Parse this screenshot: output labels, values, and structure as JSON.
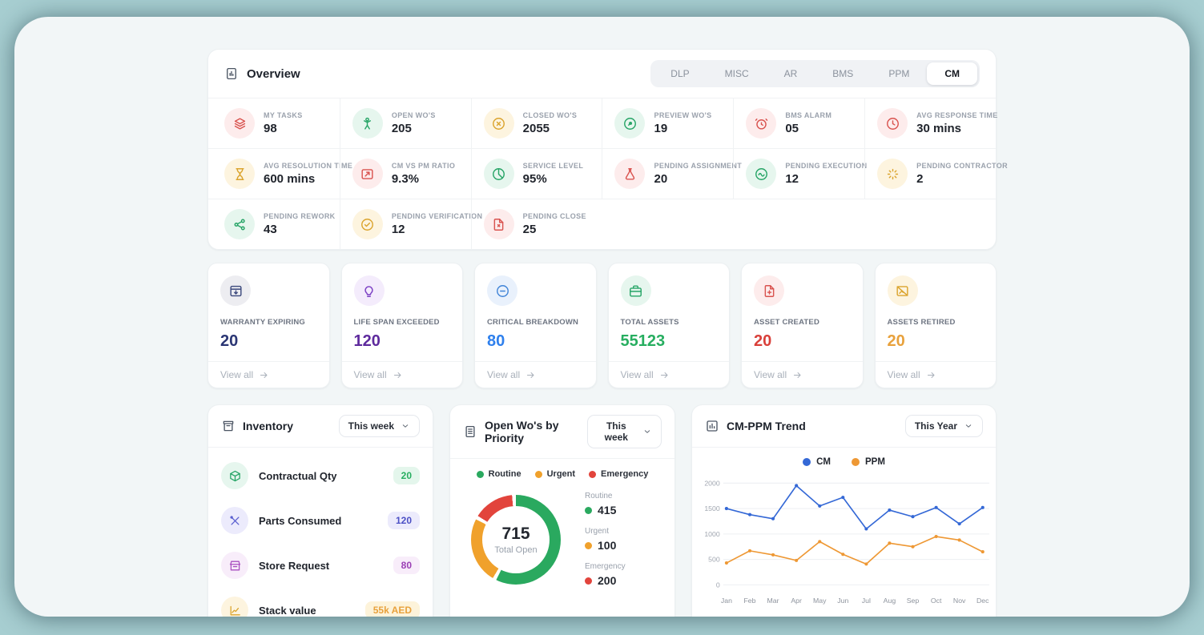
{
  "palette": {
    "background_teal": "#a7ced1",
    "panel_bg": "#f2f6f7",
    "red": "#d9534f",
    "red_bg": "#fdecec",
    "green": "#27ae60",
    "green_bg": "#e6f6ee",
    "amber": "#dba42e",
    "amber_bg": "#fdf4df",
    "navy": "#2b3674",
    "purple": "#5e2a9d",
    "blue": "#2f80ed",
    "indigo": "#4c50c5",
    "magenta": "#9b3fb5",
    "cm_line": "#3468d6",
    "ppm_line": "#ee9834"
  },
  "overview": {
    "title": "Overview",
    "tabs": [
      {
        "label": "DLP",
        "active": false
      },
      {
        "label": "MISC",
        "active": false
      },
      {
        "label": "AR",
        "active": false
      },
      {
        "label": "BMS",
        "active": false
      },
      {
        "label": "PPM",
        "active": false
      },
      {
        "label": "CM",
        "active": true
      }
    ],
    "stat_rows": [
      [
        {
          "label": "MY TASKS",
          "value": "98",
          "icon": "layers",
          "color": "red"
        },
        {
          "label": "OPEN WO'S",
          "value": "205",
          "icon": "person",
          "color": "green"
        },
        {
          "label": "CLOSED WO'S",
          "value": "2055",
          "icon": "x-circle",
          "color": "amber"
        },
        {
          "label": "PREVIEW WO'S",
          "value": "19",
          "icon": "compass",
          "color": "green"
        },
        {
          "label": "BMS ALARM",
          "value": "05",
          "icon": "alarm",
          "color": "red"
        },
        {
          "label": "AVG RESPONSE TIME",
          "value": "30 mins",
          "icon": "clock",
          "color": "red"
        }
      ],
      [
        {
          "label": "AVG RESOLUTION TIME",
          "value": "600 mins",
          "icon": "hourglass",
          "color": "amber"
        },
        {
          "label": "CM VS PM RATIO",
          "value": "9.3%",
          "icon": "ratio",
          "color": "red"
        },
        {
          "label": "SERVICE LEVEL",
          "value": "95%",
          "icon": "pie",
          "color": "green"
        },
        {
          "label": "PENDING ASSIGNMENT",
          "value": "20",
          "icon": "flask",
          "color": "red"
        },
        {
          "label": "PENDING EXECUTION",
          "value": "12",
          "icon": "wave",
          "color": "green"
        },
        {
          "label": "PENDING CONTRACTOR",
          "value": "2",
          "icon": "loader",
          "color": "amber"
        }
      ],
      [
        {
          "label": "PENDING REWORK",
          "value": "43",
          "icon": "share",
          "color": "green"
        },
        {
          "label": "PENDING VERIFICATION",
          "value": "12",
          "icon": "check-circle",
          "color": "amber"
        },
        {
          "label": "PENDING CLOSE",
          "value": "25",
          "icon": "file-close",
          "color": "red"
        }
      ]
    ]
  },
  "asset_cards": [
    {
      "label": "WARRANTY EXPIRING",
      "value": "20",
      "icon": "window-in",
      "color": "navy",
      "view_all": "View all"
    },
    {
      "label": "LIFE SPAN EXCEEDED",
      "value": "120",
      "icon": "bulb",
      "color": "purple",
      "view_all": "View all"
    },
    {
      "label": "CRITICAL BREAKDOWN",
      "value": "80",
      "icon": "minus-circle",
      "color": "blue",
      "view_all": "View all"
    },
    {
      "label": "TOTAL ASSETS",
      "value": "55123",
      "icon": "briefcase",
      "color": "green",
      "view_all": "View all"
    },
    {
      "label": "ASSET CREATED",
      "value": "20",
      "icon": "file-plus",
      "color": "red",
      "view_all": "View all"
    },
    {
      "label": "ASSETS RETIRED",
      "value": "20",
      "icon": "image-off",
      "color": "amber",
      "view_all": "View all"
    }
  ],
  "inventory": {
    "title": "Inventory",
    "period": "This week",
    "rows": [
      {
        "name": "Contractual Qty",
        "value": "20",
        "icon": "package",
        "color": "green"
      },
      {
        "name": "Parts Consumed",
        "value": "120",
        "icon": "tools",
        "color": "indigo"
      },
      {
        "name": "Store Request",
        "value": "80",
        "icon": "store",
        "color": "magenta"
      },
      {
        "name": "Stack value",
        "value": "55k AED",
        "icon": "line-chart",
        "color": "amber"
      }
    ]
  },
  "priority": {
    "title": "Open Wo's by Priority",
    "period": "This week",
    "chart_data": {
      "type": "pie",
      "categories": [
        "Routine",
        "Urgent",
        "Emergency"
      ],
      "values": [
        415,
        100,
        200
      ],
      "colors": [
        "#2aa95f",
        "#f0a12c",
        "#e2443c"
      ],
      "center_value": "715",
      "center_label": "Total Open",
      "legend_position": "top"
    }
  },
  "trend": {
    "title": "CM-PPM Trend",
    "period": "This Year",
    "chart_data": {
      "type": "line",
      "x": [
        "Jan",
        "Feb",
        "Mar",
        "Apr",
        "May",
        "Jun",
        "Jul",
        "Aug",
        "Sep",
        "Oct",
        "Nov",
        "Dec"
      ],
      "series": [
        {
          "name": "CM",
          "color": "#3468d6",
          "values": [
            1500,
            1380,
            1300,
            1950,
            1550,
            1720,
            1100,
            1470,
            1340,
            1520,
            1200,
            1520
          ]
        },
        {
          "name": "PPM",
          "color": "#ee9834",
          "values": [
            430,
            670,
            590,
            480,
            850,
            600,
            410,
            820,
            750,
            950,
            880,
            650
          ]
        }
      ],
      "ylim": [
        0,
        2000
      ],
      "yticks": [
        0,
        500,
        1000,
        1500,
        2000
      ],
      "grid": true,
      "legend_position": "top"
    }
  }
}
